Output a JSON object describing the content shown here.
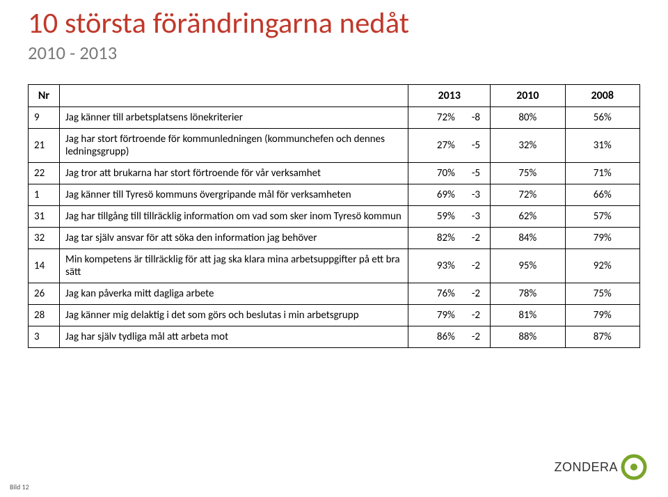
{
  "title": {
    "text": "10 största förändringarna nedåt",
    "color": "#c0392b",
    "fontsize_pt": 32
  },
  "subtitle": {
    "text": "2010 - 2013",
    "color": "#7a7a7a",
    "fontsize_pt": 20
  },
  "table": {
    "fontsize_pt": 15,
    "header_fontsize_pt": 16,
    "border_color": "#000000",
    "header": {
      "nr": "Nr",
      "question": "",
      "y2013": "2013",
      "delta": "",
      "y2010": "2010",
      "y2008": "2008"
    },
    "rows": [
      {
        "nr": "9",
        "text": "Jag känner till arbetsplatsens lönekriterier",
        "pct": "72%",
        "delta": "-8",
        "y10": "80%",
        "y08": "56%"
      },
      {
        "nr": "21",
        "text": "Jag har stort förtroende för kommunledningen (kommunchefen och dennes ledningsgrupp)",
        "pct": "27%",
        "delta": "-5",
        "y10": "32%",
        "y08": "31%"
      },
      {
        "nr": "22",
        "text": "Jag tror att brukarna har stort förtroende för vår verksamhet",
        "pct": "70%",
        "delta": "-5",
        "y10": "75%",
        "y08": "71%"
      },
      {
        "nr": "1",
        "text": "Jag känner till Tyresö kommuns övergripande mål för verksamheten",
        "pct": "69%",
        "delta": "-3",
        "y10": "72%",
        "y08": "66%"
      },
      {
        "nr": "31",
        "text": "Jag har tillgång till tillräcklig information om vad som sker inom Tyresö kommun",
        "pct": "59%",
        "delta": "-3",
        "y10": "62%",
        "y08": "57%"
      },
      {
        "nr": "32",
        "text": "Jag tar själv ansvar för att söka den information jag behöver",
        "pct": "82%",
        "delta": "-2",
        "y10": "84%",
        "y08": "79%"
      },
      {
        "nr": "14",
        "text": "Min kompetens är tillräcklig för att jag ska klara mina arbetsuppgifter på ett bra sätt",
        "pct": "93%",
        "delta": "-2",
        "y10": "95%",
        "y08": "92%"
      },
      {
        "nr": "26",
        "text": "Jag kan påverka mitt dagliga arbete",
        "pct": "76%",
        "delta": "-2",
        "y10": "78%",
        "y08": "75%"
      },
      {
        "nr": "28",
        "text": "Jag känner mig delaktig i det som görs och beslutas i min arbetsgrupp",
        "pct": "79%",
        "delta": "-2",
        "y10": "81%",
        "y08": "79%"
      },
      {
        "nr": "3",
        "text": "Jag har själv tydliga mål att arbeta mot",
        "pct": "86%",
        "delta": "-2",
        "y10": "88%",
        "y08": "87%"
      }
    ]
  },
  "logo": {
    "text": "ZONDERA",
    "text_color": "#333333",
    "text_fontsize_pt": 18,
    "ring_outer_color": "#7aa52a",
    "ring_inner_color": "#ffffff",
    "ball_color": "#7aa52a"
  },
  "slide_number": "Bild 12"
}
